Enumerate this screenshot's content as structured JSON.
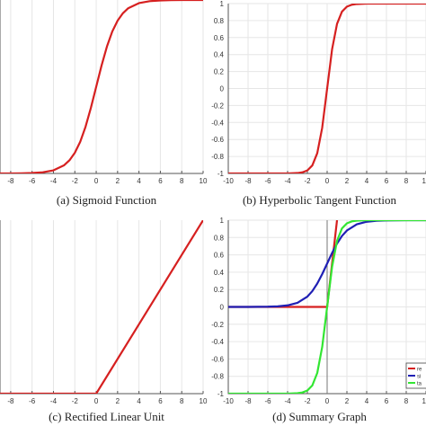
{
  "captions": {
    "a": "(a) Sigmoid Function",
    "b": "(b) Hyperbolic Tangent Function",
    "c": "(c) Rectified Linear Unit",
    "d": "(d) Summary Graph"
  },
  "colors": {
    "relu": "#d62020",
    "sigmoid": "#1f1fb4",
    "tanh": "#32e632",
    "grid": "#e6e6e6",
    "axis": "#555555"
  },
  "legend_labels": [
    "re",
    "si",
    "ta"
  ],
  "chart_data": [
    {
      "id": "a",
      "type": "line",
      "title": "",
      "xlabel": "",
      "ylabel": "",
      "xlim": [
        -9,
        10
      ],
      "ylim": [
        0,
        1
      ],
      "xticks": [
        -8,
        -6,
        -4,
        -2,
        0,
        2,
        4,
        6,
        8,
        10
      ],
      "yticks": [],
      "grid": true,
      "legend": "none",
      "series": [
        {
          "color": "#d62020",
          "x": [
            -9,
            -8,
            -7,
            -6,
            -5,
            -4,
            -3,
            -2.5,
            -2,
            -1.5,
            -1,
            -0.5,
            0,
            0.5,
            1,
            1.5,
            2,
            2.5,
            3,
            4,
            5,
            6,
            7,
            8,
            9,
            10
          ],
          "y": [
            0.000123,
            0.000335,
            0.000911,
            0.00247,
            0.0067,
            0.018,
            0.0474,
            0.0759,
            0.119,
            0.182,
            0.269,
            0.378,
            0.5,
            0.622,
            0.731,
            0.818,
            0.881,
            0.924,
            0.953,
            0.982,
            0.9933,
            0.9975,
            0.9991,
            0.99966,
            0.99988,
            0.99995
          ]
        }
      ]
    },
    {
      "id": "b",
      "type": "line",
      "title": "",
      "xlabel": "",
      "ylabel": "",
      "xlim": [
        -10,
        10
      ],
      "ylim": [
        -1,
        1
      ],
      "xticks": [
        -10,
        -8,
        -6,
        -4,
        -2,
        0,
        2,
        4,
        6,
        8,
        10
      ],
      "yticks": [
        -1,
        -0.8,
        -0.6,
        -0.4,
        -0.2,
        0,
        0.2,
        0.4,
        0.6,
        0.8,
        1
      ],
      "grid": true,
      "legend": "none",
      "series": [
        {
          "color": "#d62020",
          "x": [
            -10,
            -6,
            -4,
            -3,
            -2.5,
            -2,
            -1.5,
            -1,
            -0.5,
            0,
            0.5,
            1,
            1.5,
            2,
            2.5,
            3,
            4,
            6,
            10
          ],
          "y": [
            -1,
            -0.99999,
            -0.99933,
            -0.99505,
            -0.98661,
            -0.96403,
            -0.90515,
            -0.76159,
            -0.46212,
            0,
            0.46212,
            0.76159,
            0.90515,
            0.96403,
            0.98661,
            0.99505,
            0.99933,
            0.99999,
            1
          ]
        }
      ]
    },
    {
      "id": "c",
      "type": "line",
      "title": "",
      "xlabel": "",
      "ylabel": "",
      "xlim": [
        -9,
        10
      ],
      "ylim": [
        0,
        10
      ],
      "xticks": [
        -8,
        -6,
        -4,
        -2,
        0,
        2,
        4,
        6,
        8,
        10
      ],
      "yticks": [],
      "grid": true,
      "legend": "none",
      "series": [
        {
          "color": "#d62020",
          "x": [
            -9,
            0,
            10
          ],
          "y": [
            0,
            0,
            10
          ]
        }
      ]
    },
    {
      "id": "d",
      "type": "line",
      "title": "",
      "xlabel": "",
      "ylabel": "",
      "xlim": [
        -10,
        10
      ],
      "ylim": [
        -1,
        1
      ],
      "xticks": [
        -10,
        -8,
        -6,
        -4,
        -2,
        0,
        2,
        4,
        6,
        8,
        10
      ],
      "yticks": [
        -1,
        -0.8,
        -0.6,
        -0.4,
        -0.2,
        0,
        0.2,
        0.4,
        0.6,
        0.8,
        1
      ],
      "grid": true,
      "legend": "bottom-right",
      "series": [
        {
          "name": "re",
          "color": "#d62020",
          "x": [
            -10,
            0,
            1
          ],
          "y": [
            0,
            0,
            1
          ]
        },
        {
          "name": "si",
          "color": "#1f1fb4",
          "x": [
            -10,
            -8,
            -6,
            -5,
            -4,
            -3,
            -2,
            -1.5,
            -1,
            -0.5,
            0,
            0.5,
            1,
            1.5,
            2,
            3,
            4,
            5,
            6,
            8,
            10
          ],
          "y": [
            4.54e-05,
            0.000335,
            0.00247,
            0.0067,
            0.018,
            0.0474,
            0.119,
            0.182,
            0.269,
            0.378,
            0.5,
            0.622,
            0.731,
            0.818,
            0.881,
            0.953,
            0.982,
            0.9933,
            0.9975,
            0.99966,
            0.99995
          ]
        },
        {
          "name": "ta",
          "color": "#32e632",
          "x": [
            -10,
            -6,
            -4,
            -3,
            -2.5,
            -2,
            -1.5,
            -1,
            -0.5,
            0,
            0.5,
            1,
            1.5,
            2,
            2.5,
            3,
            4,
            6,
            10
          ],
          "y": [
            -1,
            -0.99999,
            -0.99933,
            -0.99505,
            -0.98661,
            -0.96403,
            -0.90515,
            -0.76159,
            -0.46212,
            0,
            0.46212,
            0.76159,
            0.90515,
            0.96403,
            0.98661,
            0.99505,
            0.99933,
            0.99999,
            1
          ]
        }
      ]
    }
  ]
}
